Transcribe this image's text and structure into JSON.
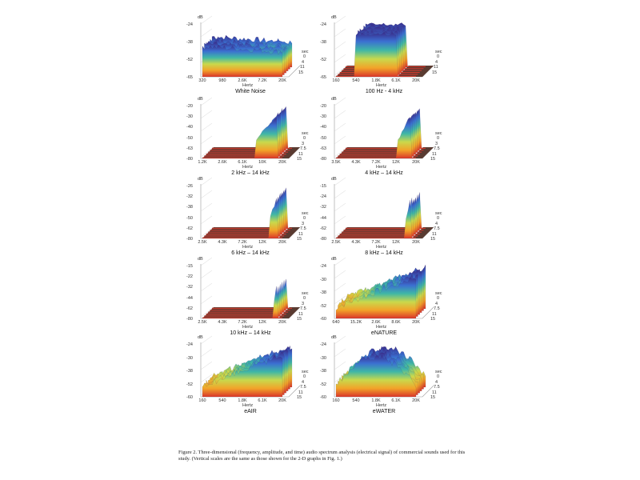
{
  "panels": [
    {
      "title": "White Noise",
      "y_unit": "dB",
      "y_ticks": [
        "-24",
        "-38",
        "-52",
        "-65"
      ],
      "x_unit": "Hertz",
      "x_ticks": [
        "320",
        "980",
        "2.6K",
        "7.2K",
        "20K"
      ],
      "time_unit": "sec",
      "time_ticks": [
        "0",
        "4",
        "11",
        "15"
      ],
      "spectrum": {
        "shape": "flat",
        "band_hz": [
          20,
          20000
        ],
        "level_db": -33
      }
    },
    {
      "title": "100 Hz - 4 kHz",
      "y_unit": "dB",
      "y_ticks": [
        "-24",
        "-38",
        "-52",
        "-65"
      ],
      "x_unit": "Hertz",
      "x_ticks": [
        "160",
        "540",
        "1.8K",
        "6.1K",
        "20K"
      ],
      "time_unit": "sec",
      "time_ticks": [
        "0",
        "4",
        "11",
        "15"
      ],
      "spectrum": {
        "shape": "band",
        "band_hz": [
          100,
          4000
        ],
        "level_db": -27
      }
    },
    {
      "title": "2 kHz – 14 kHz",
      "y_unit": "dB",
      "y_ticks": [
        "-20",
        "-30",
        "-40",
        "-50",
        "-63",
        "-80"
      ],
      "x_unit": "Hertz",
      "x_ticks": [
        "1.2K",
        "2.6K",
        "6.1K",
        "10K",
        "20K"
      ],
      "time_unit": "sec",
      "time_ticks": [
        "0",
        "3",
        "7.5",
        "11",
        "15"
      ],
      "spectrum": {
        "shape": "band",
        "band_hz": [
          2000,
          14000
        ],
        "level_db": -22
      }
    },
    {
      "title": "4 kHz – 14 kHz",
      "y_unit": "dB",
      "y_ticks": [
        "-20",
        "-30",
        "-40",
        "-50",
        "-63",
        "-80"
      ],
      "x_unit": "Hertz",
      "x_ticks": [
        "3.5K",
        "4.3K",
        "7.2K",
        "12K",
        "20K"
      ],
      "time_unit": "sec",
      "time_ticks": [
        "0",
        "3",
        "7.5",
        "11",
        "15"
      ],
      "spectrum": {
        "shape": "band",
        "band_hz": [
          4000,
          14000
        ],
        "level_db": -24
      }
    },
    {
      "title": "6 kHz – 14 kHz",
      "y_unit": "dB",
      "y_ticks": [
        "-26",
        "-32",
        "-38",
        "-50",
        "-62",
        "-80"
      ],
      "x_unit": "Hertz",
      "x_ticks": [
        "2.5K",
        "4.3K",
        "7.2K",
        "12K",
        "20K"
      ],
      "time_unit": "sec",
      "time_ticks": [
        "0",
        "3",
        "7.5",
        "11",
        "15"
      ],
      "spectrum": {
        "shape": "band",
        "band_hz": [
          6000,
          14000
        ],
        "level_db": -26
      }
    },
    {
      "title": "8 kHz – 14 kHz",
      "y_unit": "dB",
      "y_ticks": [
        "-15",
        "-24",
        "-32",
        "-44",
        "-62",
        "-80"
      ],
      "x_unit": "Hertz",
      "x_ticks": [
        "2.5K",
        "4.3K",
        "7.2K",
        "12K",
        "20K"
      ],
      "time_unit": "sec",
      "time_ticks": [
        "0",
        "4",
        "7.5",
        "11",
        "15"
      ],
      "spectrum": {
        "shape": "band",
        "band_hz": [
          8000,
          14000
        ],
        "level_db": -18
      }
    },
    {
      "title": "10 kHz – 14 kHz",
      "y_unit": "dB",
      "y_ticks": [
        "-15",
        "-22",
        "-32",
        "-44",
        "-62",
        "-80"
      ],
      "x_unit": "Hertz",
      "x_ticks": [
        "2.5K",
        "4.3K",
        "7.2K",
        "12K",
        "20K"
      ],
      "time_unit": "sec",
      "time_ticks": [
        "0",
        "3",
        "7.5",
        "11",
        "15"
      ],
      "spectrum": {
        "shape": "band",
        "band_hz": [
          10000,
          14000
        ],
        "level_db": -17
      }
    },
    {
      "title": "eNATURE",
      "y_unit": "dB",
      "y_ticks": [
        "-24",
        "-30",
        "-38",
        "-52",
        "-60"
      ],
      "x_unit": "Hertz",
      "x_ticks": [
        "640",
        "15.2K",
        "2.6K",
        "8.6K",
        "20K"
      ],
      "time_unit": "sec",
      "time_ticks": [
        "0",
        "4",
        "7.5",
        "11",
        "15"
      ],
      "spectrum": {
        "shape": "rise",
        "band_hz": [
          640,
          20000
        ],
        "level_db": -30
      }
    },
    {
      "title": "eAIR",
      "y_unit": "dB",
      "y_ticks": [
        "-24",
        "-30",
        "-38",
        "-52",
        "-60"
      ],
      "x_unit": "Hertz",
      "x_ticks": [
        "160",
        "540",
        "1.8K",
        "6.1K",
        "20K"
      ],
      "time_unit": "sec",
      "time_ticks": [
        "0",
        "4",
        "7.5",
        "11",
        "15"
      ],
      "spectrum": {
        "shape": "rise",
        "band_hz": [
          160,
          20000
        ],
        "level_db": -27
      }
    },
    {
      "title": "eWATER",
      "y_unit": "dB",
      "y_ticks": [
        "-24",
        "-30",
        "-38",
        "-52",
        "-60"
      ],
      "x_unit": "Hertz",
      "x_ticks": [
        "160",
        "540",
        "1.8K",
        "6.1K",
        "20K"
      ],
      "time_unit": "sec",
      "time_ticks": [
        "0",
        "4",
        "7.5",
        "11",
        "15"
      ],
      "spectrum": {
        "shape": "peak",
        "band_hz": [
          160,
          20000
        ],
        "level_db": -26
      }
    }
  ],
  "colors": {
    "low": "#d9362a",
    "mid1": "#f2a329",
    "mid2": "#c9d94c",
    "mid3": "#3fb7a6",
    "high": "#3b6fd1",
    "top": "#3a2c8c",
    "floor": "#5a3b31"
  },
  "figure_caption": "Figure 2. Three-dimensional (frequency, amplitude, and time) audio spectrum analysis (electrical signal) of commercial sounds used for this study. (Vertical scales are the same as those shown for the 2-D graphs in Fig. 1.)"
}
